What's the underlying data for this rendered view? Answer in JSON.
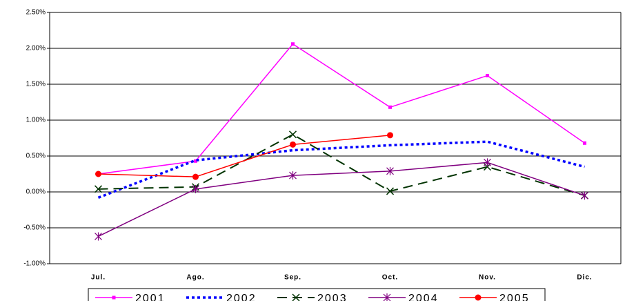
{
  "chart_data": {
    "type": "line",
    "categories": [
      "Jul.",
      "Ago.",
      "Sep.",
      "Oct.",
      "Nov.",
      "Dic."
    ],
    "series": [
      {
        "name": "2001",
        "color": "#ff00ff",
        "dash": "solid",
        "marker": "square",
        "values": [
          0.25,
          0.43,
          2.06,
          1.18,
          1.62,
          0.68
        ]
      },
      {
        "name": "2002",
        "color": "#0000ff",
        "dash": "dot",
        "marker": "none",
        "values": [
          -0.08,
          0.44,
          0.58,
          0.65,
          0.7,
          0.35
        ]
      },
      {
        "name": "2003",
        "color": "#003300",
        "dash": "dash",
        "marker": "x",
        "values": [
          0.04,
          0.07,
          0.8,
          0.01,
          0.35,
          -0.05
        ]
      },
      {
        "name": "2004",
        "color": "#800080",
        "dash": "solid",
        "marker": "star",
        "values": [
          -0.62,
          0.04,
          0.23,
          0.29,
          0.41,
          -0.05
        ]
      },
      {
        "name": "2005",
        "color": "#ff0000",
        "dash": "solid",
        "marker": "circle",
        "values": [
          0.25,
          0.21,
          0.66,
          0.79,
          null,
          null
        ]
      }
    ],
    "ylim": [
      -1,
      2.5
    ],
    "yticks": [
      {
        "value": -1,
        "label": "-1.00%"
      },
      {
        "value": -0.5,
        "label": "-0.50%"
      },
      {
        "value": 0,
        "label": "0.00%"
      },
      {
        "value": 0.5,
        "label": "0.50%"
      },
      {
        "value": 1,
        "label": "1.00%"
      },
      {
        "value": 1.5,
        "label": "1.50%"
      },
      {
        "value": 2,
        "label": "2.00%"
      },
      {
        "value": 2.5,
        "label": "2.50%"
      }
    ],
    "grid": true,
    "legend": "bottom"
  }
}
